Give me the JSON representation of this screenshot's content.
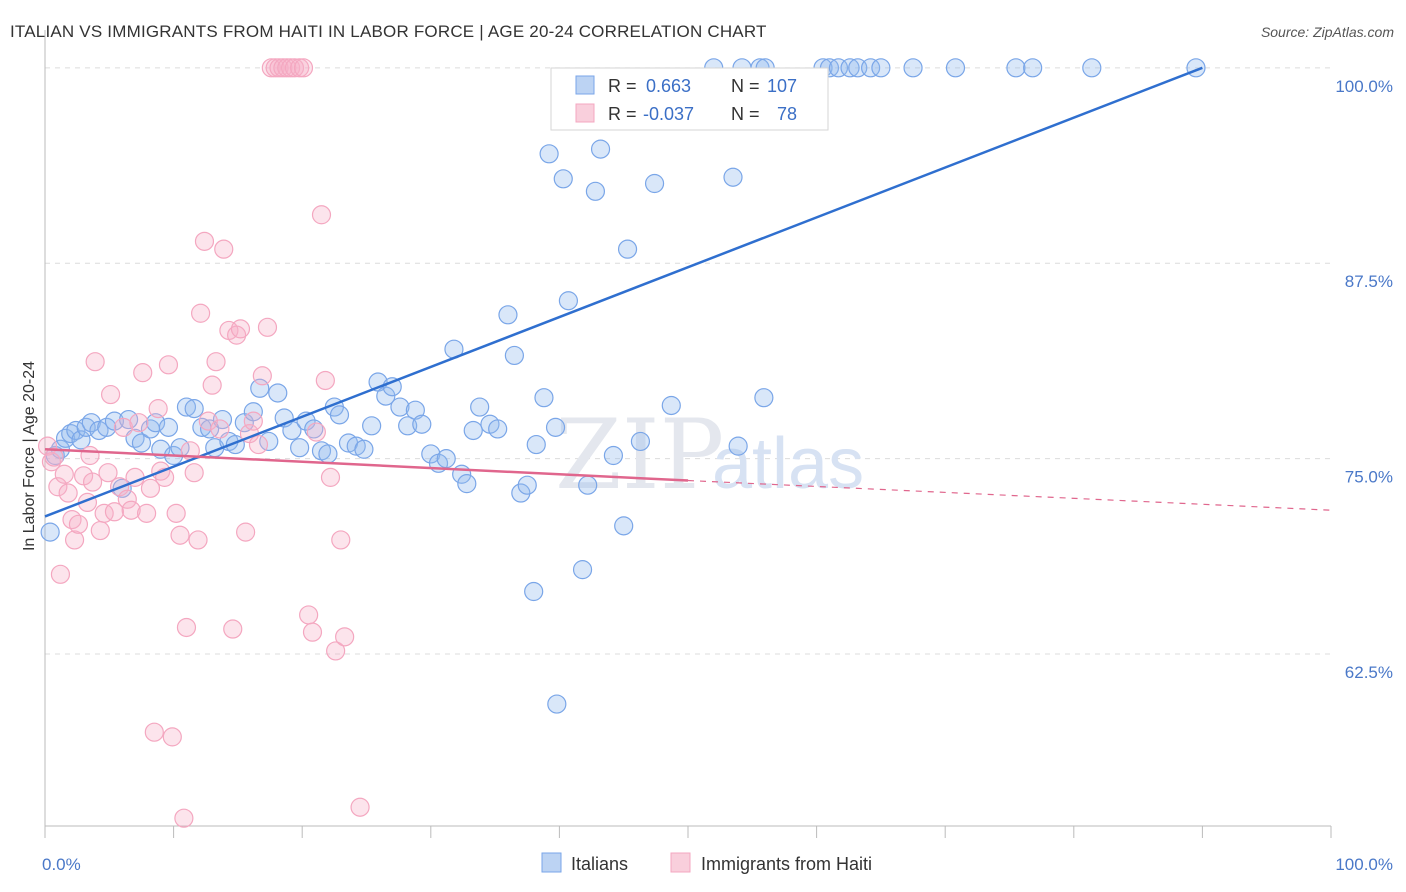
{
  "title": "ITALIAN VS IMMIGRANTS FROM HAITI IN LABOR FORCE | AGE 20-24 CORRELATION CHART",
  "source": "Source: ZipAtlas.com",
  "watermark": {
    "zip": "ZIP",
    "atlas": "atlas"
  },
  "chart_data": {
    "type": "scatter",
    "title": "ITALIAN VS IMMIGRANTS FROM HAITI IN LABOR FORCE | AGE 20-24 CORRELATION CHART",
    "xlabel": "",
    "ylabel": "In Labor Force | Age 20-24",
    "xlim": [
      0,
      100
    ],
    "ylim": [
      51.5,
      100.5
    ],
    "x_tick_labels": [
      "0.0%",
      "100.0%"
    ],
    "y_ticks": [
      62.5,
      75.0,
      87.5,
      100.0
    ],
    "y_tick_labels": [
      "62.5%",
      "75.0%",
      "87.5%",
      "100.0%"
    ],
    "grid": "horizontal dashed",
    "legend_position": "top-center",
    "series": [
      {
        "name": "Italians",
        "color": "#7aa6e8",
        "line_color": "#2f6fcf",
        "R": "0.663",
        "N": "107",
        "trend": {
          "x": [
            0,
            90
          ],
          "y": [
            71.3,
            100.0
          ],
          "dashed_to": null
        },
        "points": [
          [
            0.4,
            70.3
          ],
          [
            0.8,
            75.2
          ],
          [
            1.2,
            75.6
          ],
          [
            1.6,
            76.3
          ],
          [
            2.0,
            76.6
          ],
          [
            2.4,
            76.8
          ],
          [
            2.8,
            76.2
          ],
          [
            3.2,
            77.0
          ],
          [
            3.6,
            77.3
          ],
          [
            4.2,
            76.8
          ],
          [
            4.8,
            77.0
          ],
          [
            5.4,
            77.4
          ],
          [
            6.0,
            73.1
          ],
          [
            6.5,
            77.5
          ],
          [
            7.0,
            76.3
          ],
          [
            7.5,
            76.0
          ],
          [
            8.2,
            76.9
          ],
          [
            8.6,
            77.3
          ],
          [
            9.0,
            75.6
          ],
          [
            9.6,
            77.0
          ],
          [
            10.0,
            75.2
          ],
          [
            10.5,
            75.7
          ],
          [
            11.0,
            78.3
          ],
          [
            11.6,
            78.2
          ],
          [
            12.2,
            77.0
          ],
          [
            12.8,
            76.9
          ],
          [
            13.2,
            75.7
          ],
          [
            13.8,
            77.5
          ],
          [
            14.3,
            76.1
          ],
          [
            14.8,
            75.9
          ],
          [
            15.5,
            77.3
          ],
          [
            16.2,
            78.0
          ],
          [
            16.7,
            79.5
          ],
          [
            17.4,
            76.1
          ],
          [
            18.1,
            79.2
          ],
          [
            18.6,
            77.6
          ],
          [
            19.2,
            76.8
          ],
          [
            19.8,
            75.7
          ],
          [
            20.3,
            77.4
          ],
          [
            20.9,
            76.9
          ],
          [
            21.5,
            75.5
          ],
          [
            22.0,
            75.3
          ],
          [
            22.5,
            78.3
          ],
          [
            22.9,
            77.8
          ],
          [
            23.6,
            76.0
          ],
          [
            24.2,
            75.8
          ],
          [
            24.8,
            75.6
          ],
          [
            25.4,
            77.1
          ],
          [
            25.9,
            79.9
          ],
          [
            26.5,
            79.0
          ],
          [
            27.0,
            79.6
          ],
          [
            27.6,
            78.3
          ],
          [
            28.2,
            77.1
          ],
          [
            28.8,
            78.1
          ],
          [
            29.3,
            77.2
          ],
          [
            30.0,
            75.3
          ],
          [
            30.6,
            74.7
          ],
          [
            31.2,
            75.0
          ],
          [
            31.8,
            82.0
          ],
          [
            32.4,
            74.0
          ],
          [
            32.8,
            73.4
          ],
          [
            33.3,
            76.8
          ],
          [
            33.8,
            78.3
          ],
          [
            34.6,
            77.2
          ],
          [
            35.2,
            76.9
          ],
          [
            36.0,
            84.2
          ],
          [
            36.5,
            81.6
          ],
          [
            37.0,
            72.8
          ],
          [
            37.5,
            73.3
          ],
          [
            38.2,
            75.9
          ],
          [
            38.8,
            78.9
          ],
          [
            39.2,
            94.5
          ],
          [
            39.7,
            77.0
          ],
          [
            40.3,
            92.9
          ],
          [
            40.7,
            85.1
          ],
          [
            41.8,
            67.9
          ],
          [
            42.2,
            73.3
          ],
          [
            42.8,
            92.1
          ],
          [
            43.2,
            94.8
          ],
          [
            44.2,
            75.2
          ],
          [
            45.0,
            70.7
          ],
          [
            45.3,
            88.4
          ],
          [
            46.3,
            76.1
          ],
          [
            47.4,
            92.6
          ],
          [
            48.7,
            78.4
          ],
          [
            52.0,
            100
          ],
          [
            54.2,
            100
          ],
          [
            55.6,
            100
          ],
          [
            56.0,
            100
          ],
          [
            53.5,
            93.0
          ],
          [
            53.9,
            75.8
          ],
          [
            55.9,
            78.9
          ],
          [
            60.5,
            100
          ],
          [
            61.0,
            100
          ],
          [
            61.7,
            100
          ],
          [
            62.6,
            100
          ],
          [
            63.2,
            100
          ],
          [
            64.2,
            100
          ],
          [
            65.0,
            100
          ],
          [
            67.5,
            100
          ],
          [
            70.8,
            100
          ],
          [
            75.5,
            100
          ],
          [
            76.8,
            100
          ],
          [
            81.4,
            100
          ],
          [
            89.5,
            100
          ],
          [
            38.0,
            66.5
          ],
          [
            39.8,
            59.3
          ]
        ]
      },
      {
        "name": "Immigrants from Haiti",
        "color": "#f4a7c0",
        "line_color": "#e0668d",
        "R": "-0.037",
        "N": "78",
        "trend": {
          "x": [
            0,
            50
          ],
          "y": [
            75.6,
            73.6
          ],
          "dashed_to": [
            100,
            71.7
          ]
        },
        "points": [
          [
            0.2,
            75.8
          ],
          [
            0.5,
            74.8
          ],
          [
            0.7,
            75.1
          ],
          [
            1.0,
            73.2
          ],
          [
            1.2,
            67.6
          ],
          [
            1.5,
            74.0
          ],
          [
            1.8,
            72.8
          ],
          [
            2.1,
            71.1
          ],
          [
            2.3,
            69.8
          ],
          [
            2.6,
            70.8
          ],
          [
            3.0,
            73.9
          ],
          [
            3.3,
            72.2
          ],
          [
            3.5,
            75.2
          ],
          [
            3.7,
            73.5
          ],
          [
            3.9,
            81.2
          ],
          [
            4.3,
            70.4
          ],
          [
            4.6,
            71.5
          ],
          [
            4.9,
            74.1
          ],
          [
            5.1,
            79.1
          ],
          [
            5.4,
            71.6
          ],
          [
            5.8,
            73.2
          ],
          [
            6.1,
            77.0
          ],
          [
            6.4,
            72.4
          ],
          [
            6.7,
            71.7
          ],
          [
            7.0,
            73.8
          ],
          [
            7.3,
            77.3
          ],
          [
            7.6,
            80.5
          ],
          [
            7.9,
            71.5
          ],
          [
            8.2,
            73.1
          ],
          [
            8.5,
            57.5
          ],
          [
            8.8,
            78.2
          ],
          [
            9.0,
            74.2
          ],
          [
            9.3,
            73.8
          ],
          [
            9.6,
            81.0
          ],
          [
            9.9,
            57.2
          ],
          [
            10.2,
            71.5
          ],
          [
            10.5,
            70.1
          ],
          [
            10.8,
            52.0
          ],
          [
            11.0,
            64.2
          ],
          [
            11.3,
            75.5
          ],
          [
            11.6,
            74.1
          ],
          [
            11.9,
            69.8
          ],
          [
            12.1,
            84.3
          ],
          [
            12.4,
            88.9
          ],
          [
            12.7,
            77.4
          ],
          [
            13.0,
            79.7
          ],
          [
            13.3,
            81.2
          ],
          [
            13.6,
            76.9
          ],
          [
            13.9,
            88.4
          ],
          [
            14.3,
            83.2
          ],
          [
            14.6,
            64.1
          ],
          [
            14.9,
            82.9
          ],
          [
            15.2,
            83.3
          ],
          [
            15.6,
            70.3
          ],
          [
            15.9,
            76.6
          ],
          [
            16.2,
            77.4
          ],
          [
            16.6,
            75.9
          ],
          [
            16.9,
            80.3
          ],
          [
            17.3,
            83.4
          ],
          [
            17.6,
            100
          ],
          [
            17.9,
            100
          ],
          [
            18.2,
            100
          ],
          [
            18.5,
            100
          ],
          [
            18.8,
            100
          ],
          [
            19.1,
            100
          ],
          [
            19.4,
            100
          ],
          [
            19.8,
            100
          ],
          [
            20.1,
            100
          ],
          [
            20.5,
            65.0
          ],
          [
            20.8,
            63.9
          ],
          [
            21.1,
            76.7
          ],
          [
            21.5,
            90.6
          ],
          [
            21.8,
            80.0
          ],
          [
            22.2,
            73.8
          ],
          [
            22.6,
            62.7
          ],
          [
            23.0,
            69.8
          ],
          [
            23.3,
            63.6
          ],
          [
            24.5,
            52.7
          ]
        ]
      }
    ]
  },
  "legend": {
    "r_label": "R =",
    "n_label": "N =",
    "items": [
      {
        "r": "0.663",
        "n": "107"
      },
      {
        "r": "-0.037",
        "n": "78"
      }
    ]
  },
  "bottom_legend": [
    {
      "label": "Italians"
    },
    {
      "label": "Immigrants from Haiti"
    }
  ]
}
